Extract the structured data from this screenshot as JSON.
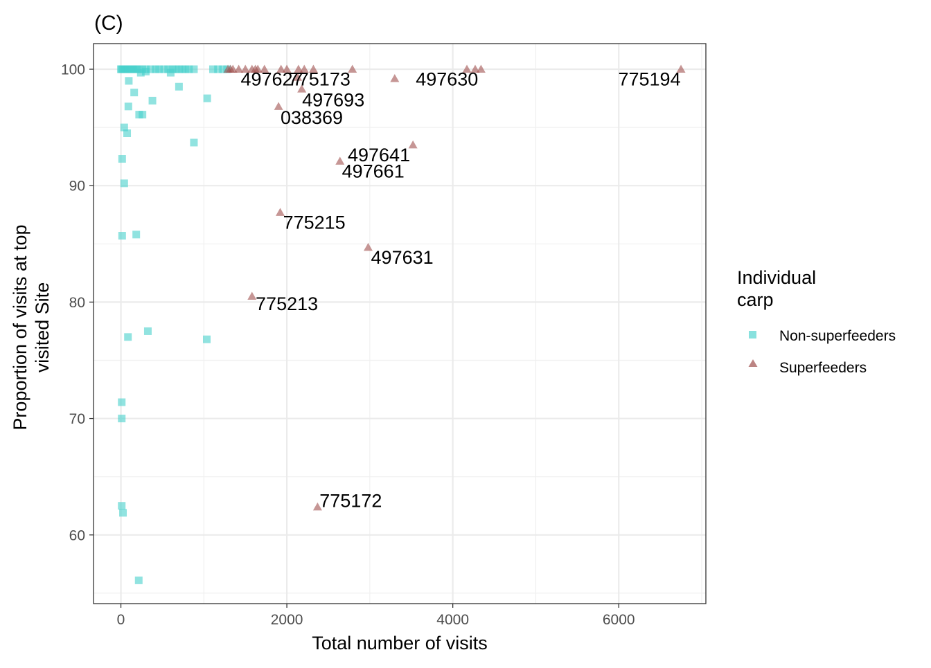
{
  "chart_data": {
    "type": "scatter",
    "title": "(C)",
    "xlabel": "Total number of visits",
    "ylabel_lines": [
      "Proportion of visits at top",
      "visited Site"
    ],
    "xlim": [
      -330,
      7050
    ],
    "ylim": [
      54.1,
      102.2
    ],
    "x_ticks": [
      0,
      2000,
      4000,
      6000
    ],
    "x_tick_labels": [
      "0",
      "2000",
      "4000",
      "6000"
    ],
    "y_ticks": [
      60,
      70,
      80,
      90,
      100
    ],
    "y_tick_labels": [
      "60",
      "70",
      "80",
      "90",
      "100"
    ],
    "grid": true,
    "legend": {
      "title_lines": [
        "Individual",
        "carp"
      ],
      "position": "right",
      "entries": [
        {
          "label": "Non-superfeeders",
          "shape": "square",
          "color": "#48d1cc"
        },
        {
          "label": "Superfeeders",
          "shape": "triangle",
          "color": "#a0504f"
        }
      ]
    },
    "series": [
      {
        "name": "Non-superfeeders",
        "shape": "square",
        "color": "#48d1cc",
        "points": [
          [
            0,
            100
          ],
          [
            10,
            100
          ],
          [
            20,
            100
          ],
          [
            35,
            100
          ],
          [
            50,
            100
          ],
          [
            70,
            100
          ],
          [
            90,
            100
          ],
          [
            110,
            100
          ],
          [
            130,
            100
          ],
          [
            150,
            100
          ],
          [
            170,
            100
          ],
          [
            190,
            100
          ],
          [
            210,
            100
          ],
          [
            260,
            100
          ],
          [
            300,
            100
          ],
          [
            360,
            100
          ],
          [
            420,
            100
          ],
          [
            460,
            100
          ],
          [
            520,
            100
          ],
          [
            570,
            100
          ],
          [
            620,
            100
          ],
          [
            660,
            100
          ],
          [
            700,
            100
          ],
          [
            740,
            100
          ],
          [
            780,
            100
          ],
          [
            820,
            100
          ],
          [
            880,
            100
          ],
          [
            1110,
            100
          ],
          [
            1170,
            100
          ],
          [
            1230,
            100
          ],
          [
            1280,
            100
          ],
          [
            240,
            99.7
          ],
          [
            300,
            99.8
          ],
          [
            600,
            99.7
          ],
          [
            95,
            99.0
          ],
          [
            160,
            98.0
          ],
          [
            700,
            98.5
          ],
          [
            380,
            97.3
          ],
          [
            90,
            96.8
          ],
          [
            1040,
            97.5
          ],
          [
            220,
            96.1
          ],
          [
            260,
            96.1
          ],
          [
            40,
            95.0
          ],
          [
            75,
            94.5
          ],
          [
            880,
            93.7
          ],
          [
            15,
            92.3
          ],
          [
            40,
            90.2
          ],
          [
            15,
            85.7
          ],
          [
            185,
            85.8
          ],
          [
            85,
            77.0
          ],
          [
            325,
            77.5
          ],
          [
            1035,
            76.8
          ],
          [
            10,
            71.4
          ],
          [
            10,
            70.0
          ],
          [
            10,
            62.5
          ],
          [
            25,
            61.9
          ],
          [
            215,
            56.1
          ]
        ]
      },
      {
        "name": "Superfeeders",
        "shape": "triangle",
        "color": "#a0504f",
        "points": [
          [
            1290,
            100
          ],
          [
            1320,
            100
          ],
          [
            1350,
            100
          ],
          [
            1420,
            100
          ],
          [
            1500,
            100
          ],
          [
            1580,
            100
          ],
          [
            1620,
            100
          ],
          [
            1650,
            100
          ],
          [
            1730,
            100
          ],
          [
            1930,
            100
          ],
          [
            2000,
            100
          ],
          [
            2140,
            100
          ],
          [
            2210,
            100
          ],
          [
            2320,
            100
          ],
          [
            2790,
            100
          ],
          [
            4170,
            100
          ],
          [
            4270,
            100
          ],
          [
            4340,
            100
          ],
          [
            6750,
            100
          ],
          [
            2130,
            99.3
          ],
          [
            3300,
            99.2
          ],
          [
            2180,
            98.3
          ],
          [
            1900,
            96.8
          ],
          [
            3520,
            93.5
          ],
          [
            2640,
            92.1
          ],
          [
            1920,
            87.7
          ],
          [
            2980,
            84.7
          ],
          [
            1580,
            80.5
          ],
          [
            2370,
            62.4
          ]
        ]
      }
    ],
    "annotations": [
      {
        "text": "497627",
        "x": 1820,
        "y": 99.2
      },
      {
        "text": "775173",
        "x": 2390,
        "y": 99.2
      },
      {
        "text": "497630",
        "x": 3930,
        "y": 99.2
      },
      {
        "text": "775194",
        "x": 6370,
        "y": 99.2
      },
      {
        "text": "497693",
        "x": 2560,
        "y": 97.4
      },
      {
        "text": "038369",
        "x": 2300,
        "y": 95.9
      },
      {
        "text": "497641",
        "x": 3110,
        "y": 92.7
      },
      {
        "text": "497661",
        "x": 3040,
        "y": 91.3
      },
      {
        "text": "775215",
        "x": 2330,
        "y": 86.9
      },
      {
        "text": "497631",
        "x": 3390,
        "y": 83.9
      },
      {
        "text": "775213",
        "x": 2000,
        "y": 79.9
      },
      {
        "text": "775172",
        "x": 2770,
        "y": 63.0
      }
    ]
  }
}
